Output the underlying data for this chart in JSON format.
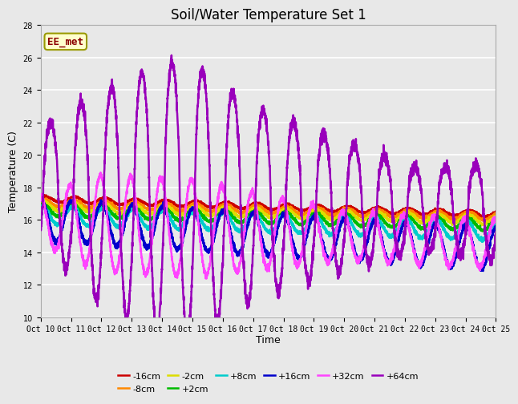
{
  "title": "Soil/Water Temperature Set 1",
  "xlabel": "Time",
  "ylabel": "Temperature (C)",
  "ylim": [
    10,
    28
  ],
  "yticks": [
    10,
    12,
    14,
    16,
    18,
    20,
    22,
    24,
    26,
    28
  ],
  "background_color": "#e8e8e8",
  "grid_color": "#ffffff",
  "colors": {
    "-16cm": "#cc0000",
    "-8cm": "#ff8800",
    "-2cm": "#dddd00",
    "+2cm": "#00bb00",
    "+8cm": "#00cccc",
    "+16cm": "#0000cc",
    "+32cm": "#ff44ff",
    "+64cm": "#9900bb"
  },
  "labels": [
    "-16cm",
    "-8cm",
    "-2cm",
    "+2cm",
    "+8cm",
    "+16cm",
    "+32cm",
    "+64cm"
  ],
  "annotation_text": "EE_met",
  "title_fontsize": 12,
  "tick_fontsize": 7,
  "axis_fontsize": 9
}
